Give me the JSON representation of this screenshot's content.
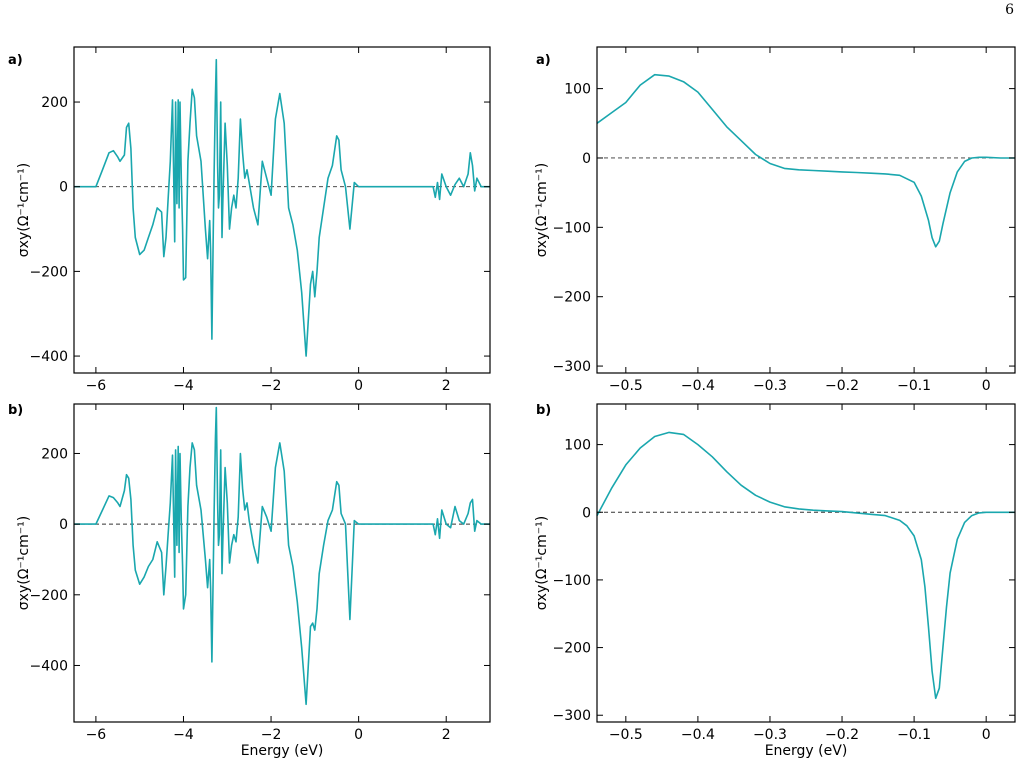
{
  "page_number": "6",
  "colors": {
    "series": "#1aa7ae",
    "zero_line": "#333333",
    "axes": "#000000"
  },
  "chart_data": [
    {
      "type": "line",
      "panel_label": "a)",
      "title": "",
      "xlabel": "",
      "ylabel": "σxy(Ω⁻¹cm⁻¹)",
      "xlim": [
        -6.5,
        3.0
      ],
      "ylim": [
        -440,
        330
      ],
      "xticks": [
        -6,
        -4,
        -2,
        0,
        2
      ],
      "yticks": [
        -400,
        -200,
        0,
        200
      ],
      "zero_line": true,
      "grid": false,
      "x": [
        -6.5,
        -6.0,
        -5.85,
        -5.7,
        -5.6,
        -5.5,
        -5.45,
        -5.35,
        -5.3,
        -5.25,
        -5.2,
        -5.15,
        -5.1,
        -5.0,
        -4.9,
        -4.8,
        -4.7,
        -4.6,
        -4.5,
        -4.45,
        -4.4,
        -4.35,
        -4.3,
        -4.25,
        -4.2,
        -4.18,
        -4.15,
        -4.12,
        -4.1,
        -4.08,
        -4.05,
        -4.02,
        -4.0,
        -3.95,
        -3.9,
        -3.85,
        -3.8,
        -3.75,
        -3.7,
        -3.6,
        -3.5,
        -3.45,
        -3.4,
        -3.38,
        -3.35,
        -3.32,
        -3.3,
        -3.27,
        -3.25,
        -3.22,
        -3.2,
        -3.18,
        -3.15,
        -3.12,
        -3.1,
        -3.05,
        -3.0,
        -2.95,
        -2.9,
        -2.85,
        -2.8,
        -2.75,
        -2.7,
        -2.65,
        -2.6,
        -2.55,
        -2.5,
        -2.4,
        -2.3,
        -2.2,
        -2.1,
        -2.0,
        -1.9,
        -1.8,
        -1.7,
        -1.6,
        -1.5,
        -1.4,
        -1.3,
        -1.2,
        -1.1,
        -1.05,
        -1.0,
        -0.95,
        -0.9,
        -0.8,
        -0.7,
        -0.6,
        -0.5,
        -0.45,
        -0.4,
        -0.3,
        -0.2,
        -0.1,
        -0.05,
        0.0,
        0.5,
        1.0,
        1.5,
        1.7,
        1.75,
        1.8,
        1.85,
        1.9,
        2.0,
        2.1,
        2.2,
        2.3,
        2.4,
        2.5,
        2.55,
        2.6,
        2.65,
        2.7,
        2.8,
        3.0
      ],
      "y": [
        0,
        0,
        40,
        80,
        85,
        70,
        60,
        75,
        140,
        150,
        90,
        -50,
        -120,
        -160,
        -150,
        -120,
        -90,
        -50,
        -60,
        -165,
        -120,
        -30,
        60,
        205,
        -130,
        200,
        -40,
        205,
        -50,
        200,
        20,
        -100,
        -220,
        -215,
        60,
        150,
        230,
        210,
        120,
        60,
        -100,
        -170,
        -80,
        -150,
        -360,
        -100,
        30,
        210,
        300,
        50,
        -50,
        -20,
        200,
        -120,
        -30,
        150,
        50,
        -100,
        -50,
        -20,
        -50,
        20,
        160,
        80,
        20,
        40,
        10,
        -50,
        -90,
        60,
        20,
        -20,
        160,
        220,
        150,
        -50,
        -90,
        -150,
        -250,
        -400,
        -230,
        -200,
        -260,
        -200,
        -120,
        -50,
        20,
        50,
        120,
        110,
        40,
        0,
        -100,
        10,
        5,
        0,
        0,
        0,
        0,
        0,
        -25,
        10,
        -30,
        30,
        0,
        -20,
        5,
        20,
        0,
        30,
        80,
        50,
        -10,
        20,
        0,
        0
      ]
    },
    {
      "type": "line",
      "panel_label": "a)",
      "title": "",
      "xlabel": "",
      "ylabel": "σxy(Ω⁻¹cm⁻¹)",
      "xlim": [
        -0.54,
        0.04
      ],
      "ylim": [
        -310,
        160
      ],
      "xticks": [
        -0.5,
        -0.4,
        -0.3,
        -0.2,
        -0.1,
        0.0
      ],
      "yticks": [
        -300,
        -200,
        -100,
        0,
        100
      ],
      "zero_line": true,
      "grid": false,
      "x": [
        -0.54,
        -0.52,
        -0.5,
        -0.48,
        -0.46,
        -0.44,
        -0.42,
        -0.4,
        -0.38,
        -0.36,
        -0.34,
        -0.32,
        -0.3,
        -0.28,
        -0.26,
        -0.24,
        -0.22,
        -0.2,
        -0.18,
        -0.16,
        -0.14,
        -0.12,
        -0.1,
        -0.09,
        -0.08,
        -0.075,
        -0.07,
        -0.065,
        -0.06,
        -0.05,
        -0.04,
        -0.03,
        -0.02,
        -0.01,
        0.0,
        0.02,
        0.04
      ],
      "y": [
        50,
        65,
        80,
        105,
        120,
        118,
        110,
        95,
        70,
        45,
        25,
        5,
        -8,
        -15,
        -17,
        -18,
        -19,
        -20,
        -21,
        -22,
        -23,
        -25,
        -35,
        -55,
        -90,
        -115,
        -128,
        -120,
        -95,
        -50,
        -20,
        -5,
        0,
        1,
        1,
        0,
        0
      ]
    },
    {
      "type": "line",
      "panel_label": "b)",
      "title": "",
      "xlabel": "Energy (eV)",
      "ylabel": "σxy(Ω⁻¹cm⁻¹)",
      "xlim": [
        -6.5,
        3.0
      ],
      "ylim": [
        -560,
        340
      ],
      "xticks": [
        -6,
        -4,
        -2,
        0,
        2
      ],
      "yticks": [
        -400,
        -200,
        0,
        200
      ],
      "zero_line": true,
      "grid": false,
      "x": [
        -6.5,
        -6.0,
        -5.85,
        -5.7,
        -5.6,
        -5.5,
        -5.45,
        -5.35,
        -5.3,
        -5.25,
        -5.2,
        -5.15,
        -5.1,
        -5.0,
        -4.9,
        -4.8,
        -4.7,
        -4.6,
        -4.5,
        -4.45,
        -4.4,
        -4.35,
        -4.3,
        -4.25,
        -4.2,
        -4.18,
        -4.15,
        -4.12,
        -4.1,
        -4.08,
        -4.05,
        -4.02,
        -4.0,
        -3.95,
        -3.9,
        -3.85,
        -3.8,
        -3.75,
        -3.7,
        -3.6,
        -3.5,
        -3.45,
        -3.4,
        -3.38,
        -3.35,
        -3.32,
        -3.3,
        -3.27,
        -3.25,
        -3.22,
        -3.2,
        -3.18,
        -3.15,
        -3.12,
        -3.1,
        -3.05,
        -3.0,
        -2.95,
        -2.9,
        -2.85,
        -2.8,
        -2.75,
        -2.7,
        -2.65,
        -2.6,
        -2.55,
        -2.5,
        -2.4,
        -2.3,
        -2.2,
        -2.1,
        -2.0,
        -1.9,
        -1.8,
        -1.7,
        -1.6,
        -1.5,
        -1.4,
        -1.3,
        -1.2,
        -1.1,
        -1.05,
        -1.0,
        -0.95,
        -0.9,
        -0.8,
        -0.7,
        -0.6,
        -0.5,
        -0.45,
        -0.4,
        -0.3,
        -0.2,
        -0.1,
        -0.05,
        0.0,
        0.5,
        1.0,
        1.5,
        1.7,
        1.75,
        1.8,
        1.85,
        1.9,
        2.0,
        2.1,
        2.2,
        2.3,
        2.4,
        2.5,
        2.55,
        2.6,
        2.65,
        2.7,
        2.8,
        3.0
      ],
      "y": [
        0,
        0,
        40,
        80,
        75,
        60,
        50,
        95,
        140,
        130,
        70,
        -60,
        -130,
        -170,
        -150,
        -120,
        -100,
        -50,
        -80,
        -200,
        -120,
        -30,
        60,
        195,
        -150,
        210,
        -60,
        220,
        -80,
        200,
        10,
        -120,
        -240,
        -200,
        50,
        160,
        230,
        210,
        110,
        40,
        -100,
        -180,
        -100,
        -180,
        -390,
        -120,
        30,
        240,
        330,
        60,
        -60,
        -30,
        210,
        -140,
        -40,
        160,
        60,
        -110,
        -60,
        -30,
        -50,
        20,
        200,
        100,
        40,
        60,
        10,
        -60,
        -110,
        50,
        20,
        -20,
        160,
        230,
        150,
        -60,
        -120,
        -220,
        -350,
        -510,
        -290,
        -280,
        -300,
        -240,
        -140,
        -60,
        10,
        40,
        120,
        110,
        30,
        0,
        -270,
        10,
        5,
        0,
        0,
        0,
        0,
        0,
        -30,
        15,
        -40,
        40,
        0,
        -10,
        50,
        10,
        0,
        30,
        60,
        70,
        -20,
        10,
        0,
        0
      ]
    },
    {
      "type": "line",
      "panel_label": "b)",
      "title": "",
      "xlabel": "Energy (eV)",
      "ylabel": "σxy(Ω⁻¹cm⁻¹)",
      "xlim": [
        -0.54,
        0.04
      ],
      "ylim": [
        -310,
        160
      ],
      "xticks": [
        -0.5,
        -0.4,
        -0.3,
        -0.2,
        -0.1,
        0.0
      ],
      "yticks": [
        -300,
        -200,
        -100,
        0,
        100
      ],
      "zero_line": true,
      "grid": false,
      "x": [
        -0.54,
        -0.53,
        -0.52,
        -0.5,
        -0.48,
        -0.46,
        -0.44,
        -0.42,
        -0.4,
        -0.38,
        -0.36,
        -0.34,
        -0.32,
        -0.3,
        -0.28,
        -0.26,
        -0.24,
        -0.22,
        -0.2,
        -0.18,
        -0.16,
        -0.14,
        -0.12,
        -0.11,
        -0.1,
        -0.09,
        -0.085,
        -0.08,
        -0.075,
        -0.07,
        -0.065,
        -0.06,
        -0.055,
        -0.05,
        -0.04,
        -0.03,
        -0.02,
        -0.01,
        0.0,
        0.02,
        0.04
      ],
      "y": [
        -5,
        15,
        35,
        70,
        95,
        112,
        118,
        115,
        100,
        82,
        60,
        40,
        25,
        15,
        8,
        5,
        3,
        2,
        1,
        -1,
        -3,
        -5,
        -12,
        -20,
        -35,
        -70,
        -110,
        -170,
        -235,
        -275,
        -260,
        -200,
        -140,
        -90,
        -40,
        -15,
        -5,
        -1,
        0,
        0,
        0
      ]
    }
  ]
}
